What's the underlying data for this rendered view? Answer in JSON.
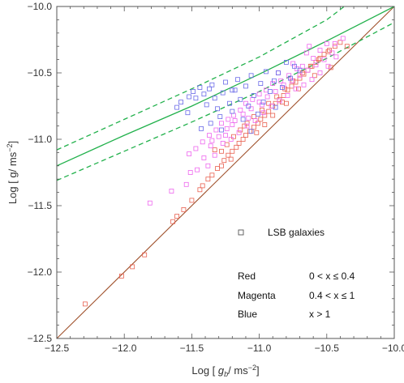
{
  "chart_data": {
    "type": "scatter",
    "title": "",
    "xlabel_prefix": "Log [ ",
    "xlabel_var": "g",
    "xlabel_sub": "b",
    "xlabel_unit": "/ ms",
    "xlabel_sup": "−2",
    "xlabel_suffix": "]",
    "ylabel_prefix": "Log [ g/ ms",
    "ylabel_sup": "−2",
    "ylabel_suffix": "]",
    "xlim": [
      -12.5,
      -10.0
    ],
    "ylim": [
      -12.5,
      -10.0
    ],
    "x_ticks": [
      "-12.5",
      "-12.0",
      "-11.5",
      "-11.0",
      "-10.5",
      "-10.0"
    ],
    "y_ticks": [
      "-12.5",
      "-12.0",
      "-11.5",
      "-11.0",
      "-10.5",
      "-10.0"
    ],
    "grid": false,
    "legend_position": "bottom-right",
    "legend": {
      "marker_label": "LSB galaxies",
      "rows": [
        {
          "name": "Red",
          "range": "0 < x ≤ 0.4"
        },
        {
          "name": "Magenta",
          "range": "0.4 < x ≤ 1"
        },
        {
          "name": "Blue",
          "range": "x > 1"
        }
      ]
    },
    "lines": [
      {
        "name": "unity",
        "color": "#a0522d",
        "dashed": false,
        "x": [
          -12.5,
          -10.0
        ],
        "y": [
          -12.5,
          -10.0
        ]
      },
      {
        "name": "model",
        "color": "#22b14c",
        "dashed": false,
        "x": [
          -12.5,
          -12.0,
          -11.5,
          -11.0,
          -10.5,
          -10.0
        ],
        "y": [
          -11.2,
          -10.97,
          -10.75,
          -10.51,
          -10.26,
          -10.0
        ]
      },
      {
        "name": "model-upper",
        "color": "#22b14c",
        "dashed": true,
        "x": [
          -12.5,
          -12.0,
          -11.5,
          -11.0,
          -10.5,
          -10.37
        ],
        "y": [
          -11.08,
          -10.85,
          -10.62,
          -10.38,
          -10.1,
          -10.0
        ]
      },
      {
        "name": "model-lower",
        "color": "#22b14c",
        "dashed": true,
        "x": [
          -12.5,
          -12.0,
          -11.5,
          -11.0,
          -10.5,
          -10.0
        ],
        "y": [
          -11.31,
          -11.09,
          -10.87,
          -10.64,
          -10.39,
          -10.12
        ]
      }
    ],
    "series": [
      {
        "name": "Red",
        "color": "#e8604f",
        "points": [
          [
            -12.29,
            -12.24
          ],
          [
            -12.02,
            -12.03
          ],
          [
            -11.94,
            -11.96
          ],
          [
            -11.85,
            -11.87
          ],
          [
            -11.64,
            -11.62
          ],
          [
            -11.61,
            -11.58
          ],
          [
            -11.56,
            -11.53
          ],
          [
            -11.5,
            -11.46
          ],
          [
            -11.44,
            -11.38
          ],
          [
            -11.42,
            -11.35
          ],
          [
            -11.38,
            -11.3
          ],
          [
            -11.35,
            -11.27
          ],
          [
            -11.31,
            -11.22
          ],
          [
            -11.28,
            -11.2
          ],
          [
            -11.26,
            -11.16
          ],
          [
            -11.23,
            -11.12
          ],
          [
            -11.2,
            -11.09
          ],
          [
            -11.17,
            -11.06
          ],
          [
            -11.15,
            -11.03
          ],
          [
            -11.12,
            -11.0
          ],
          [
            -11.1,
            -10.97
          ],
          [
            -11.07,
            -10.94
          ],
          [
            -11.04,
            -10.91
          ],
          [
            -11.01,
            -10.88
          ],
          [
            -10.99,
            -10.85
          ],
          [
            -10.96,
            -10.82
          ],
          [
            -10.93,
            -10.79
          ],
          [
            -10.9,
            -10.75
          ],
          [
            -10.88,
            -10.73
          ],
          [
            -10.85,
            -10.7
          ],
          [
            -10.82,
            -10.67
          ],
          [
            -10.79,
            -10.63
          ],
          [
            -10.76,
            -10.6
          ],
          [
            -10.73,
            -10.57
          ],
          [
            -10.7,
            -10.54
          ],
          [
            -10.67,
            -10.51
          ],
          [
            -10.64,
            -10.48
          ],
          [
            -10.61,
            -10.45
          ],
          [
            -10.58,
            -10.42
          ],
          [
            -10.55,
            -10.39
          ],
          [
            -10.52,
            -10.36
          ],
          [
            -10.48,
            -10.33
          ],
          [
            -10.44,
            -10.3
          ],
          [
            -10.4,
            -10.27
          ],
          [
            -11.28,
            -11.09
          ],
          [
            -11.24,
            -11.04
          ],
          [
            -11.19,
            -10.98
          ],
          [
            -11.14,
            -10.93
          ],
          [
            -11.09,
            -10.88
          ],
          [
            -11.04,
            -10.83
          ],
          [
            -10.98,
            -10.78
          ],
          [
            -10.93,
            -10.73
          ],
          [
            -10.87,
            -10.68
          ],
          [
            -10.81,
            -10.62
          ],
          [
            -10.75,
            -10.56
          ],
          [
            -10.68,
            -10.5
          ],
          [
            -10.62,
            -10.45
          ],
          [
            -10.56,
            -10.4
          ],
          [
            -10.49,
            -10.34
          ],
          [
            -11.33,
            -11.08
          ],
          [
            -11.21,
            -11.15
          ],
          [
            -11.11,
            -10.9
          ],
          [
            -10.96,
            -10.89
          ],
          [
            -10.83,
            -10.72
          ],
          [
            -10.71,
            -10.62
          ],
          [
            -10.59,
            -10.52
          ],
          [
            -10.47,
            -10.46
          ],
          [
            -10.35,
            -10.3
          ],
          [
            -10.9,
            -10.82
          ],
          [
            -10.8,
            -10.73
          ],
          [
            -11.02,
            -10.95
          ]
        ]
      },
      {
        "name": "Magenta",
        "color": "#ee66ee",
        "points": [
          [
            -11.81,
            -11.48
          ],
          [
            -11.65,
            -11.39
          ],
          [
            -11.54,
            -11.34
          ],
          [
            -11.51,
            -11.25
          ],
          [
            -11.46,
            -11.23
          ],
          [
            -11.41,
            -11.14
          ],
          [
            -11.38,
            -11.2
          ],
          [
            -11.36,
            -11.05
          ],
          [
            -11.33,
            -11.12
          ],
          [
            -11.3,
            -10.98
          ],
          [
            -11.27,
            -11.03
          ],
          [
            -11.24,
            -10.92
          ],
          [
            -11.21,
            -11.0
          ],
          [
            -11.18,
            -10.86
          ],
          [
            -11.15,
            -10.95
          ],
          [
            -11.12,
            -10.81
          ],
          [
            -11.09,
            -10.9
          ],
          [
            -11.06,
            -10.77
          ],
          [
            -11.03,
            -10.86
          ],
          [
            -11.0,
            -10.72
          ],
          [
            -10.97,
            -10.8
          ],
          [
            -10.94,
            -10.68
          ],
          [
            -10.91,
            -10.75
          ],
          [
            -10.88,
            -10.64
          ],
          [
            -10.85,
            -10.71
          ],
          [
            -10.82,
            -10.59
          ],
          [
            -10.79,
            -10.67
          ],
          [
            -10.76,
            -10.56
          ],
          [
            -10.73,
            -10.62
          ],
          [
            -10.7,
            -10.52
          ],
          [
            -10.67,
            -10.59
          ],
          [
            -10.64,
            -10.48
          ],
          [
            -10.61,
            -10.55
          ],
          [
            -10.58,
            -10.44
          ],
          [
            -10.55,
            -10.5
          ],
          [
            -10.52,
            -10.4
          ],
          [
            -10.49,
            -10.45
          ],
          [
            -10.46,
            -10.35
          ],
          [
            -10.43,
            -10.38
          ],
          [
            -10.38,
            -10.24
          ],
          [
            -10.55,
            -10.33
          ],
          [
            -10.6,
            -10.39
          ],
          [
            -10.68,
            -10.45
          ],
          [
            -10.72,
            -10.47
          ],
          [
            -10.78,
            -10.52
          ],
          [
            -10.84,
            -10.56
          ],
          [
            -10.9,
            -10.58
          ],
          [
            -10.95,
            -10.63
          ],
          [
            -11.0,
            -10.66
          ],
          [
            -11.05,
            -10.7
          ],
          [
            -11.1,
            -10.73
          ],
          [
            -11.14,
            -10.78
          ],
          [
            -11.19,
            -10.82
          ],
          [
            -11.23,
            -10.85
          ],
          [
            -11.28,
            -10.88
          ],
          [
            -11.32,
            -10.93
          ],
          [
            -11.37,
            -10.97
          ],
          [
            -11.42,
            -11.02
          ],
          [
            -11.47,
            -11.07
          ],
          [
            -11.52,
            -11.11
          ],
          [
            -10.5,
            -10.28
          ],
          [
            -10.65,
            -10.35
          ],
          [
            -10.75,
            -10.43
          ],
          [
            -10.63,
            -10.3
          ],
          [
            -10.98,
            -10.74
          ],
          [
            -11.08,
            -10.84
          ],
          [
            -11.2,
            -10.89
          ],
          [
            -11.25,
            -10.97
          ],
          [
            -11.35,
            -11.01
          ],
          [
            -10.86,
            -10.5
          ],
          [
            -10.44,
            -10.28
          ]
        ]
      },
      {
        "name": "Blue",
        "color": "#6a6ae8",
        "points": [
          [
            -11.61,
            -10.76
          ],
          [
            -11.58,
            -10.72
          ],
          [
            -11.53,
            -10.8
          ],
          [
            -11.49,
            -10.64
          ],
          [
            -11.47,
            -10.69
          ],
          [
            -11.44,
            -10.61
          ],
          [
            -11.41,
            -10.66
          ],
          [
            -11.39,
            -10.74
          ],
          [
            -11.37,
            -10.62
          ],
          [
            -11.35,
            -10.59
          ],
          [
            -11.33,
            -10.69
          ],
          [
            -11.31,
            -10.77
          ],
          [
            -11.29,
            -10.83
          ],
          [
            -11.27,
            -10.65
          ],
          [
            -11.25,
            -10.57
          ],
          [
            -11.22,
            -10.73
          ],
          [
            -11.2,
            -10.79
          ],
          [
            -11.18,
            -10.63
          ],
          [
            -11.16,
            -10.55
          ],
          [
            -11.14,
            -10.7
          ],
          [
            -11.12,
            -10.85
          ],
          [
            -11.1,
            -10.6
          ],
          [
            -11.08,
            -10.75
          ],
          [
            -11.06,
            -10.52
          ],
          [
            -11.04,
            -10.67
          ],
          [
            -11.01,
            -10.81
          ],
          [
            -10.99,
            -10.58
          ],
          [
            -10.97,
            -10.72
          ],
          [
            -10.95,
            -10.49
          ],
          [
            -10.92,
            -10.64
          ],
          [
            -10.89,
            -10.56
          ],
          [
            -10.86,
            -10.5
          ],
          [
            -10.83,
            -10.61
          ],
          [
            -10.8,
            -10.42
          ],
          [
            -10.77,
            -10.54
          ],
          [
            -10.74,
            -10.45
          ],
          [
            -10.7,
            -10.48
          ],
          [
            -11.28,
            -10.93
          ],
          [
            -11.36,
            -10.88
          ],
          [
            -11.43,
            -10.92
          ],
          [
            -11.2,
            -10.63
          ],
          [
            -11.52,
            -10.68
          ],
          [
            -11.06,
            -10.94
          ],
          [
            -10.88,
            -10.76
          ]
        ]
      }
    ]
  }
}
